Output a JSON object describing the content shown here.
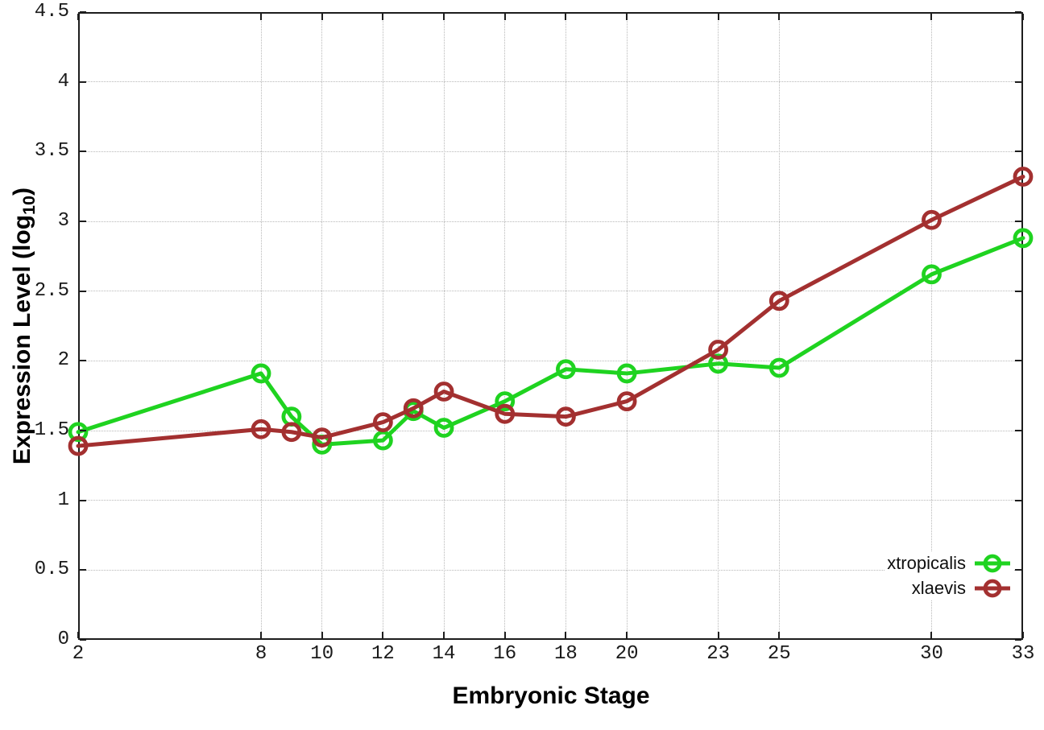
{
  "chart_data": {
    "type": "line",
    "title": "",
    "xlabel": "Embryonic Stage",
    "ylabel": "Expression Level (log10)",
    "ylabel_parts": {
      "prefix": "Expression Level (log",
      "sub": "10",
      "suffix": ")"
    },
    "xlim": [
      2,
      33
    ],
    "ylim": [
      0,
      4.5
    ],
    "x_ticks": [
      2,
      8,
      10,
      12,
      14,
      16,
      18,
      20,
      23,
      25,
      30,
      33
    ],
    "x_tick_labels": [
      "2",
      "8",
      "10",
      "12",
      "14",
      "16",
      "18",
      "20",
      "23",
      "25",
      "30",
      "33"
    ],
    "y_ticks": [
      0,
      0.5,
      1,
      1.5,
      2,
      2.5,
      3,
      3.5,
      4,
      4.5
    ],
    "y_tick_labels": [
      "0",
      "0.5",
      "1",
      "1.5",
      "2",
      "2.5",
      "3",
      "3.5",
      "4",
      "4.5"
    ],
    "grid": true,
    "legend_position": "bottom-right",
    "x": [
      2,
      8,
      9,
      10,
      12,
      13,
      14,
      16,
      18,
      20,
      23,
      25,
      30,
      33
    ],
    "series": [
      {
        "name": "xtropicalis",
        "color": "#1fd320",
        "marker": "open-circle",
        "values": [
          1.49,
          1.91,
          1.6,
          1.4,
          1.43,
          1.64,
          1.52,
          1.71,
          1.94,
          1.91,
          1.98,
          1.95,
          2.62,
          2.88
        ]
      },
      {
        "name": "xlaevis",
        "color": "#a33030",
        "marker": "open-circle",
        "values": [
          1.39,
          1.51,
          1.49,
          1.45,
          1.56,
          1.66,
          1.78,
          1.62,
          1.6,
          1.71,
          2.08,
          2.43,
          3.01,
          3.32
        ]
      }
    ],
    "style": {
      "axis_color": "#1d1d1d",
      "grid_color": "#b8b8b8",
      "tick_label_color": "#1a1a1a",
      "background": "#ffffff"
    }
  }
}
